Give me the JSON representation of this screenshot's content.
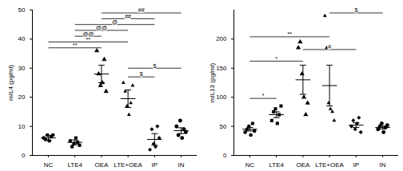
{
  "chart_data": [
    {
      "type": "scatter",
      "y_label": "mIL4 (pg/ml)",
      "categories": [
        "NC",
        "LTE4",
        "OEA",
        "LTE+OEA",
        "IP",
        "IN"
      ],
      "points": [
        [
          6,
          5.5,
          7,
          5,
          6.5,
          7
        ],
        [
          5,
          3,
          4,
          6,
          4.5,
          3.5
        ],
        [
          36,
          28,
          24,
          25,
          33,
          22
        ],
        [
          25,
          22,
          17,
          14,
          18,
          24
        ],
        [
          2,
          9,
          4,
          3,
          10,
          6
        ],
        [
          10,
          7,
          12,
          6,
          9,
          8
        ]
      ],
      "mean": [
        6,
        4.5,
        28,
        19.5,
        5.5,
        8.5
      ],
      "sem": [
        0.8,
        0.8,
        3,
        3,
        2,
        1
      ],
      "ylim": [
        0,
        50
      ],
      "yticks": [
        0,
        10,
        20,
        30,
        40,
        50
      ],
      "significance": [
        {
          "from": "NC",
          "to": "OEA",
          "y": 37,
          "label": "**"
        },
        {
          "from": "NC",
          "to": "LTE+OEA",
          "y": 39,
          "label": "**"
        },
        {
          "from": "LTE4",
          "to": "OEA",
          "y": 41,
          "label": "@@"
        },
        {
          "from": "LTE4",
          "to": "LTE+OEA",
          "y": 43,
          "label": "@@"
        },
        {
          "from": "LTE4",
          "to": "IP",
          "y": 45,
          "label": "@"
        },
        {
          "from": "OEA",
          "to": "IP",
          "y": 47,
          "label": "##"
        },
        {
          "from": "OEA",
          "to": "IN",
          "y": 49,
          "label": "##"
        },
        {
          "from": "LTE+OEA",
          "to": "IP",
          "y": 27,
          "label": "$"
        },
        {
          "from": "LTE+OEA",
          "to": "IN",
          "y": 30,
          "label": "$"
        }
      ]
    },
    {
      "type": "scatter",
      "y_label": "mIL13 (pg/ml)",
      "categories": [
        "NC",
        "LTE4",
        "OEA",
        "LTE+OEA",
        "IP",
        "IN"
      ],
      "points": [
        [
          40,
          45,
          50,
          35,
          55,
          42
        ],
        [
          60,
          75,
          80,
          55,
          70,
          85
        ],
        [
          185,
          195,
          140,
          100,
          70,
          90
        ],
        [
          240,
          185,
          90,
          80,
          75,
          60
        ],
        [
          50,
          60,
          45,
          55,
          65,
          40
        ],
        [
          45,
          50,
          55,
          40,
          48,
          52
        ]
      ],
      "mean": [
        45,
        70,
        130,
        120,
        52,
        48
      ],
      "sem": [
        3,
        5,
        25,
        35,
        4,
        2.5
      ],
      "ylim": [
        0,
        250
      ],
      "yticks": [
        0,
        50,
        100,
        150,
        200
      ],
      "significance": [
        {
          "from": "NC",
          "to": "LTE4",
          "y": 98,
          "label": "*"
        },
        {
          "from": "NC",
          "to": "OEA",
          "y": 162,
          "label": "*"
        },
        {
          "from": "OEA",
          "to": "IP",
          "y": 182,
          "label": "#"
        },
        {
          "from": "NC",
          "to": "LTE+OEA",
          "y": 204,
          "label": "**"
        },
        {
          "from": "LTE+OEA",
          "to": "IN",
          "y": 245,
          "label": "$"
        }
      ]
    }
  ]
}
